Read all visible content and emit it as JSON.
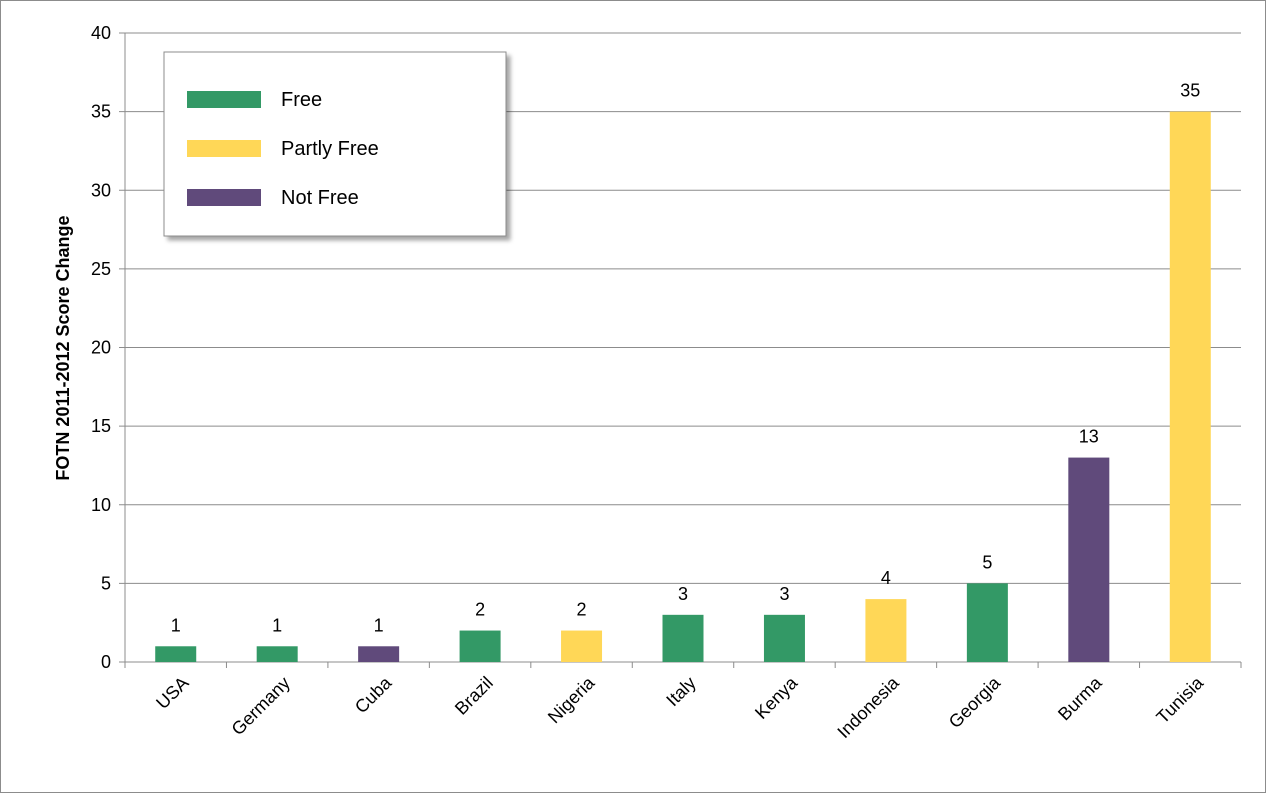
{
  "chart_data": {
    "type": "bar",
    "title": "",
    "xlabel": "",
    "ylabel": "FOTN 2011-2012 Score Change",
    "ylim": [
      0,
      40
    ],
    "yticks": [
      0,
      5,
      10,
      15,
      20,
      25,
      30,
      35,
      40
    ],
    "grid": true,
    "legend_position": "top-left",
    "categories": [
      "USA",
      "Germany",
      "Cuba",
      "Brazil",
      "Nigeria",
      "Italy",
      "Kenya",
      "Indonesia",
      "Georgia",
      "Burma",
      "Tunisia"
    ],
    "values": [
      1,
      1,
      1,
      2,
      2,
      3,
      3,
      4,
      5,
      13,
      35
    ],
    "status": [
      "Free",
      "Free",
      "Not Free",
      "Free",
      "Partly Free",
      "Free",
      "Free",
      "Partly Free",
      "Free",
      "Not Free",
      "Partly Free"
    ],
    "legend": [
      {
        "name": "Free",
        "color": "#339966"
      },
      {
        "name": "Partly Free",
        "color": "#FFD757"
      },
      {
        "name": "Not Free",
        "color": "#604A7B"
      }
    ]
  }
}
